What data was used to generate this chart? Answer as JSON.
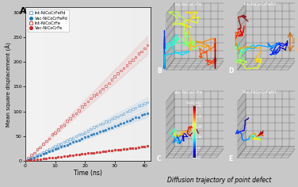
{
  "xlabel": "Time (ns)",
  "ylabel": "Mean square displacement (Å)",
  "xlim": [
    0,
    42
  ],
  "ylim": [
    0,
    310
  ],
  "xticks": [
    0,
    10,
    20,
    30,
    40
  ],
  "yticks": [
    0,
    50,
    100,
    150,
    200,
    250,
    300
  ],
  "series": [
    {
      "label": "Int-NiCoCrFePd",
      "color": "#5599cc",
      "marker": "s",
      "slope": 2.9,
      "filled": false
    },
    {
      "label": "Vac-NiCoCrFePd",
      "color": "#2277bb",
      "marker": "o",
      "slope": 2.35,
      "filled": true
    },
    {
      "label": "Int-NiCoCrFe",
      "color": "#cc2222",
      "marker": "s",
      "slope": 5.7,
      "filled": false
    },
    {
      "label": "Vac-NiCoCrFe",
      "color": "#cc2222",
      "marker": "o",
      "slope": 0.72,
      "filled": true
    }
  ],
  "panel_labels": [
    "B",
    "C",
    "D",
    "E"
  ],
  "panel_titles": [
    "Int-NiCoCrFe",
    "Vac-NiCoCrFe",
    "Int-NiCoCrFePd",
    "Vac-NiCoCrFePd"
  ],
  "bottom_label": "Diffusion trajectory of point defect",
  "fig_bg": "#c8c8c8",
  "plot_bg_left": "#e0e0e0",
  "plot_bg_right": "#f0f0f0",
  "panel_bg": "#0a0a0a",
  "grid_color": "#555555"
}
